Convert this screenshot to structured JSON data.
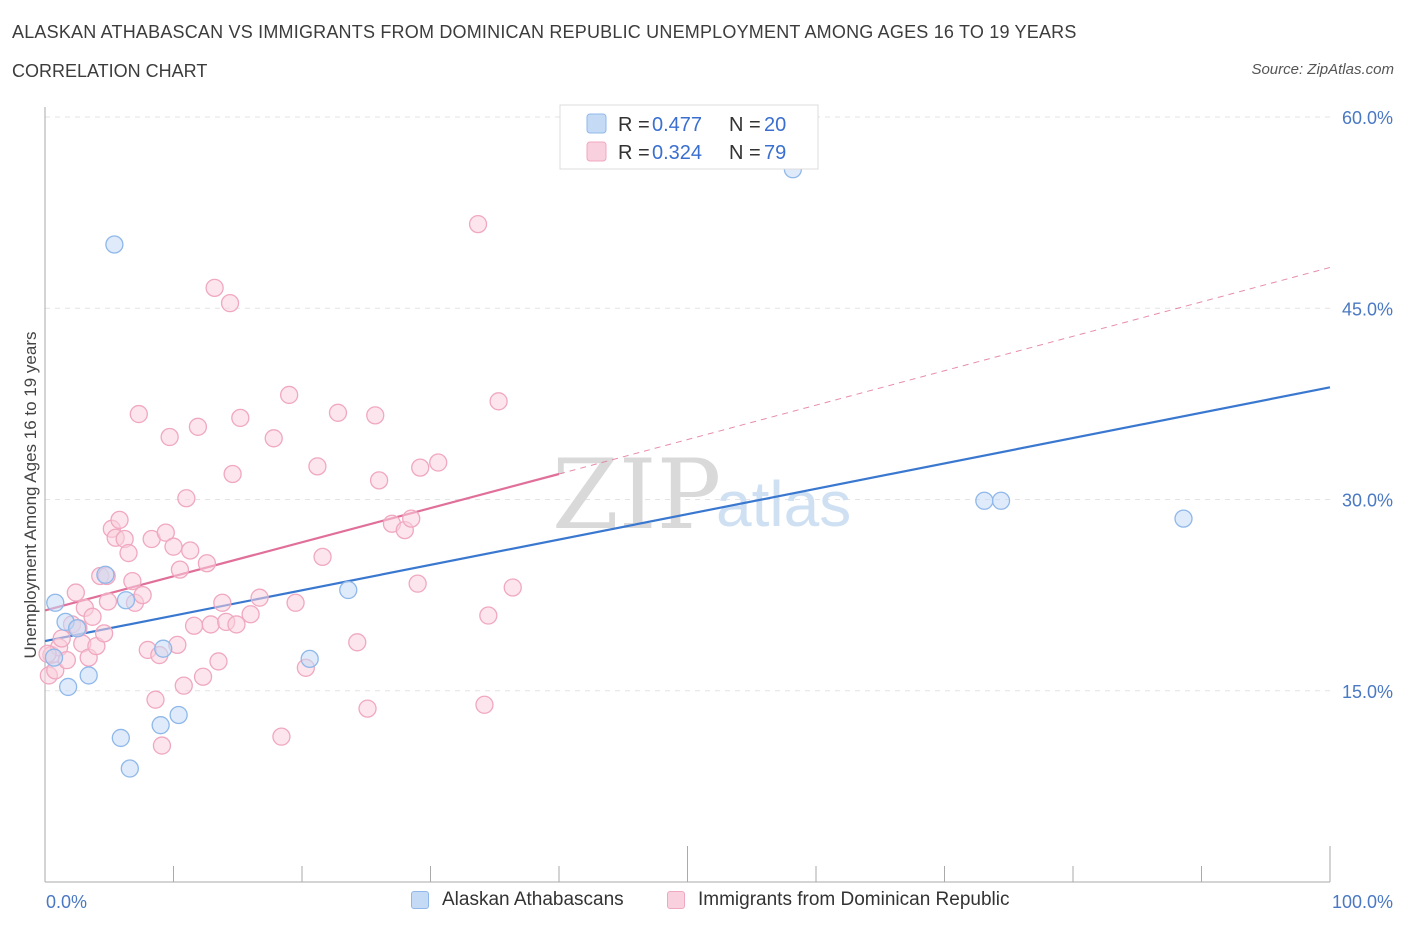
{
  "title": "ALASKAN ATHABASCAN VS IMMIGRANTS FROM DOMINICAN REPUBLIC UNEMPLOYMENT AMONG AGES 16 TO 19 YEARS",
  "subtitle": "CORRELATION CHART",
  "source": "Source: ZipAtlas.com",
  "watermark": {
    "zip": "ZIP",
    "atlas": "atlas"
  },
  "legend_top": [
    {
      "r_label": "R = ",
      "r_value": "0.477",
      "n_label": "N = ",
      "n_value": "20"
    },
    {
      "r_label": "R = ",
      "r_value": "0.324",
      "n_label": "N = ",
      "n_value": "79"
    }
  ],
  "chart_data": {
    "type": "scatter",
    "ylabel": "Unemployment Among Ages 16 to 19 years",
    "xlim": [
      0,
      100
    ],
    "ylim": [
      0,
      60
    ],
    "x_tick_labels": [
      "0.0%",
      "100.0%"
    ],
    "y_ticks": [
      15,
      30,
      45,
      60
    ],
    "y_tick_labels": [
      "15.0%",
      "30.0%",
      "45.0%",
      "60.0%"
    ],
    "series": [
      {
        "name": "Alaskan Athabascans",
        "color": "#8fb8ea",
        "fill": "#c5dbf5",
        "line_color": "#3a78d0",
        "trend": {
          "x0": 0,
          "y0": 18.9,
          "x1": 100,
          "y1": 38.8
        },
        "points": [
          [
            0.8,
            21.9
          ],
          [
            5.4,
            50.0
          ],
          [
            4.7,
            24.1
          ],
          [
            6.3,
            22.1
          ],
          [
            1.6,
            20.4
          ],
          [
            2.5,
            19.9
          ],
          [
            0.7,
            17.6
          ],
          [
            3.4,
            16.2
          ],
          [
            1.8,
            15.3
          ],
          [
            9.2,
            18.3
          ],
          [
            5.9,
            11.3
          ],
          [
            9.0,
            12.3
          ],
          [
            10.4,
            13.1
          ],
          [
            6.6,
            8.9
          ],
          [
            20.6,
            17.5
          ],
          [
            23.6,
            22.9
          ],
          [
            58.2,
            55.9
          ],
          [
            73.1,
            29.9
          ],
          [
            74.4,
            29.9
          ],
          [
            88.6,
            28.5
          ]
        ]
      },
      {
        "name": "Immigrants from Dominican Republic",
        "color": "#f0a8c0",
        "fill": "#f9d0dd",
        "line_color": "#e0709a",
        "trend": {
          "x0": 0,
          "y0": 21.3,
          "x1": 40,
          "y1": 32.0
        },
        "trend_dashed": {
          "x0": 40,
          "y0": 32.0,
          "x1": 100,
          "y1": 48.2
        },
        "points": [
          [
            0.3,
            16.2
          ],
          [
            0.5,
            17.8
          ],
          [
            0.8,
            16.6
          ],
          [
            1.1,
            18.4
          ],
          [
            1.3,
            19.1
          ],
          [
            1.7,
            17.4
          ],
          [
            2.1,
            20.2
          ],
          [
            2.4,
            22.7
          ],
          [
            2.6,
            19.9
          ],
          [
            2.9,
            18.7
          ],
          [
            3.1,
            21.5
          ],
          [
            3.4,
            17.6
          ],
          [
            3.7,
            20.8
          ],
          [
            4.0,
            18.5
          ],
          [
            4.3,
            24.0
          ],
          [
            4.6,
            19.5
          ],
          [
            4.9,
            22.0
          ],
          [
            5.2,
            27.7
          ],
          [
            5.5,
            27.0
          ],
          [
            5.8,
            28.4
          ],
          [
            6.2,
            26.9
          ],
          [
            6.5,
            25.8
          ],
          [
            6.8,
            23.6
          ],
          [
            7.0,
            21.9
          ],
          [
            7.3,
            36.7
          ],
          [
            7.6,
            22.5
          ],
          [
            8.0,
            18.2
          ],
          [
            8.3,
            26.9
          ],
          [
            8.6,
            14.3
          ],
          [
            8.9,
            17.8
          ],
          [
            9.1,
            10.7
          ],
          [
            9.4,
            27.4
          ],
          [
            9.7,
            34.9
          ],
          [
            10.0,
            26.3
          ],
          [
            10.3,
            18.6
          ],
          [
            10.5,
            24.5
          ],
          [
            10.8,
            15.4
          ],
          [
            11.0,
            30.1
          ],
          [
            11.3,
            26.0
          ],
          [
            11.6,
            20.1
          ],
          [
            11.9,
            35.7
          ],
          [
            12.3,
            16.1
          ],
          [
            12.6,
            25.0
          ],
          [
            12.9,
            20.2
          ],
          [
            13.2,
            46.6
          ],
          [
            13.5,
            17.3
          ],
          [
            13.8,
            21.9
          ],
          [
            14.1,
            20.4
          ],
          [
            14.4,
            45.4
          ],
          [
            14.6,
            32.0
          ],
          [
            14.9,
            20.2
          ],
          [
            15.2,
            36.4
          ],
          [
            16.0,
            21.0
          ],
          [
            16.7,
            22.3
          ],
          [
            17.8,
            34.8
          ],
          [
            18.4,
            11.4
          ],
          [
            19.0,
            38.2
          ],
          [
            19.5,
            21.9
          ],
          [
            20.3,
            16.8
          ],
          [
            21.2,
            32.6
          ],
          [
            21.6,
            25.5
          ],
          [
            22.8,
            36.8
          ],
          [
            24.3,
            18.8
          ],
          [
            25.1,
            13.6
          ],
          [
            25.7,
            36.6
          ],
          [
            26.0,
            31.5
          ],
          [
            27.0,
            28.1
          ],
          [
            28.0,
            27.6
          ],
          [
            28.5,
            28.5
          ],
          [
            29.0,
            23.4
          ],
          [
            29.2,
            32.5
          ],
          [
            30.6,
            32.9
          ],
          [
            33.7,
            51.6
          ],
          [
            34.2,
            13.9
          ],
          [
            34.5,
            20.9
          ],
          [
            35.3,
            37.7
          ],
          [
            36.4,
            23.1
          ],
          [
            4.8,
            24.0
          ],
          [
            0.2,
            17.9
          ]
        ]
      }
    ]
  }
}
